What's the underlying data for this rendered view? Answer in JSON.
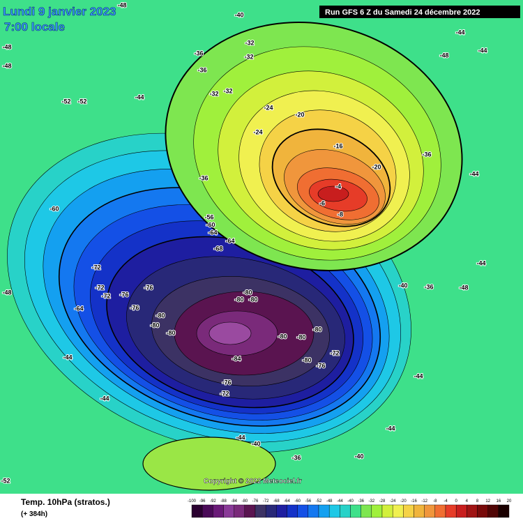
{
  "header": {
    "date": "Lundi 9 janvier 2023",
    "time": "7:00 locale",
    "run": "Run GFS 6 Z du Samedi 24 décembre 2022"
  },
  "footer": {
    "title": "Temp. 10hPa (stratos.)",
    "lead": "(+ 384h)",
    "copyright": "Copyright © 2022 Meteociel.fr"
  },
  "colorbar": {
    "ticks": [
      -100,
      -96,
      -92,
      -88,
      -84,
      -80,
      -76,
      -72,
      -68,
      -64,
      -60,
      -56,
      -52,
      -48,
      -44,
      -40,
      -36,
      -32,
      -28,
      -24,
      -20,
      -16,
      -12,
      -8,
      -4,
      0,
      4,
      8,
      12,
      16,
      20
    ],
    "colors": [
      "#2a0030",
      "#4a0a58",
      "#6a1a78",
      "#8a3a98",
      "#7a2a7a",
      "#5a1450",
      "#3c3264",
      "#282878",
      "#1e1ea0",
      "#1432c8",
      "#1450e6",
      "#1478f0",
      "#14a0f0",
      "#1ec8e6",
      "#28d2c8",
      "#3ee08a",
      "#7ee650",
      "#a0f03c",
      "#d2f03c",
      "#f0f050",
      "#f5d246",
      "#f0b43c",
      "#f0963c",
      "#f06e32",
      "#e63c28",
      "#c81e1e",
      "#a01414",
      "#780a0a",
      "#500505",
      "#1a0000"
    ]
  },
  "contour_labels": [
    -48,
    -48,
    -48,
    -52,
    -52,
    -44,
    -40,
    -36,
    -32,
    -32,
    -36,
    -32,
    -32,
    -24,
    -24,
    -20,
    -16,
    -4,
    -6,
    -8,
    -20,
    -36,
    -44,
    -44,
    -36,
    -56,
    -60,
    -64,
    -64,
    -68,
    -60,
    -72,
    -72,
    -72,
    -76,
    -76,
    -76,
    -80,
    -80,
    -80,
    -80,
    -80,
    -80,
    -80,
    -80,
    -80,
    -84,
    -80,
    -76,
    -72,
    -76,
    -72,
    -64,
    -44,
    -44,
    -44,
    -40,
    -36,
    -40,
    -44,
    -44,
    -40,
    -36,
    -48,
    -44,
    -44,
    -48,
    -48,
    -52
  ]
}
